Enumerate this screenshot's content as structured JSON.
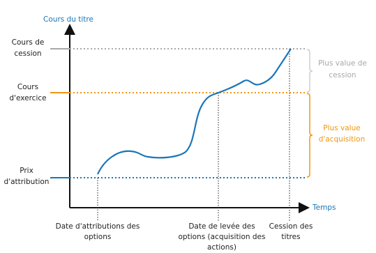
{
  "y_axis_label": "Cours du titre",
  "x_axis_label": "Temps",
  "levels": [
    {
      "label": [
        "Cours de",
        "cession"
      ]
    },
    {
      "label": [
        "Cours",
        "d'exercice"
      ]
    },
    {
      "label": [
        "Prix",
        "d'attribution"
      ]
    }
  ],
  "events": [
    {
      "label": [
        "Date d'attributions des",
        "options"
      ]
    },
    {
      "label": [
        "Date de levée des",
        "options (acquisition des",
        "actions)"
      ]
    },
    {
      "label": [
        "Cession des",
        "titres"
      ]
    }
  ],
  "gains": [
    {
      "label": [
        "Plus value de",
        "cession"
      ]
    },
    {
      "label": [
        "Plus value",
        "d'acquisition"
      ]
    }
  ]
}
